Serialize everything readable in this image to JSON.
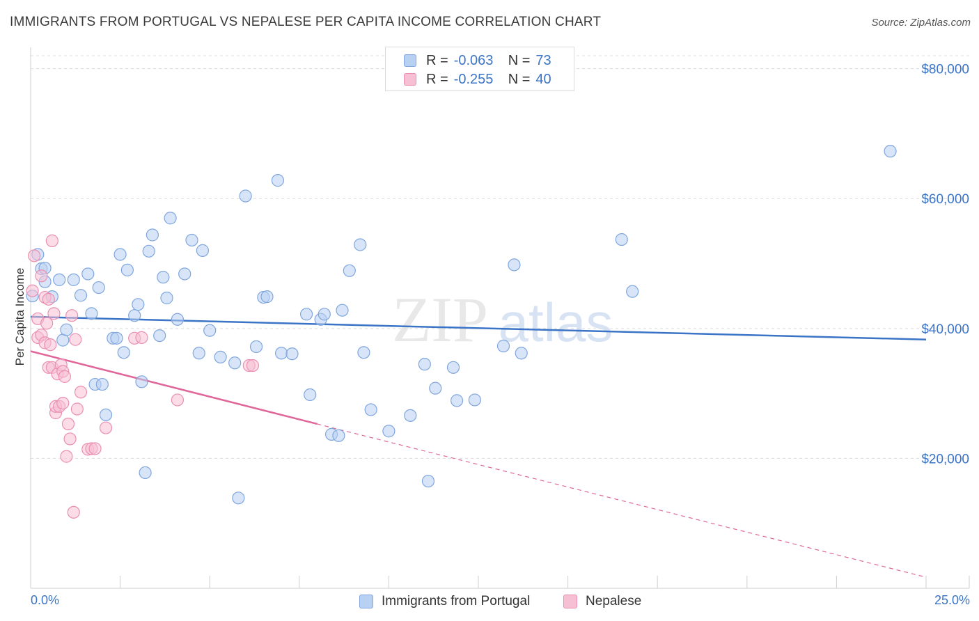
{
  "title": "IMMIGRANTS FROM PORTUGAL VS NEPALESE PER CAPITA INCOME CORRELATION CHART",
  "source": "Source: ZipAtlas.com",
  "watermark": {
    "zip": "ZIP",
    "atlas": "atlas"
  },
  "legend": {
    "r_label": "R =",
    "n_label": "N =",
    "rows": [
      {
        "r": "-0.063",
        "n": "73"
      },
      {
        "r": "-0.255",
        "n": "40"
      }
    ]
  },
  "colors": {
    "blue": "#3b74c6",
    "blue_fill": "#b8d0f2",
    "blue_stroke": "#7fa6de",
    "pink": "#e0669a",
    "pink_fill": "#f7bfd3",
    "pink_stroke": "#ea8fb2",
    "grid": "#dcdcdc"
  },
  "chart_data": {
    "type": "scatter",
    "xlabel": "",
    "ylabel": "Per Capita Income",
    "xlim": [
      0,
      25
    ],
    "ylim": [
      0,
      82000
    ],
    "x_tick_labels": [
      "0.0%",
      "25.0%"
    ],
    "y_ticks": [
      20000,
      40000,
      60000,
      80000
    ],
    "y_tick_labels": [
      "$20,000",
      "$40,000",
      "$60,000",
      "$80,000"
    ],
    "grid": true,
    "series": [
      {
        "name": "Immigrants from Portugal",
        "color": "#3b74c6",
        "trend": {
          "x": [
            0.0,
            25.0
          ],
          "y": [
            41800,
            38300
          ]
        },
        "points": [
          [
            0.2,
            51400
          ],
          [
            0.3,
            49200
          ],
          [
            0.4,
            49300
          ],
          [
            0.4,
            47200
          ],
          [
            0.6,
            44900
          ],
          [
            0.8,
            47500
          ],
          [
            0.9,
            38200
          ],
          [
            1.0,
            39800
          ],
          [
            1.2,
            47500
          ],
          [
            1.4,
            45100
          ],
          [
            1.6,
            48400
          ],
          [
            1.7,
            42300
          ],
          [
            1.8,
            31400
          ],
          [
            1.9,
            46300
          ],
          [
            2.0,
            31400
          ],
          [
            2.1,
            26700
          ],
          [
            2.3,
            38500
          ],
          [
            2.4,
            38500
          ],
          [
            2.5,
            51400
          ],
          [
            2.6,
            36300
          ],
          [
            2.7,
            49000
          ],
          [
            2.9,
            42000
          ],
          [
            3.0,
            43700
          ],
          [
            3.1,
            31800
          ],
          [
            3.2,
            17800
          ],
          [
            3.3,
            51900
          ],
          [
            3.4,
            54400
          ],
          [
            3.6,
            38900
          ],
          [
            3.7,
            47900
          ],
          [
            3.8,
            44700
          ],
          [
            3.9,
            57000
          ],
          [
            4.1,
            41400
          ],
          [
            4.3,
            48400
          ],
          [
            4.5,
            53600
          ],
          [
            4.7,
            36200
          ],
          [
            4.8,
            52000
          ],
          [
            5.0,
            39700
          ],
          [
            5.3,
            35600
          ],
          [
            5.7,
            34700
          ],
          [
            5.8,
            13900
          ],
          [
            6.0,
            60400
          ],
          [
            6.3,
            37200
          ],
          [
            6.5,
            44800
          ],
          [
            6.6,
            44900
          ],
          [
            6.9,
            62800
          ],
          [
            7.0,
            36200
          ],
          [
            7.3,
            36100
          ],
          [
            7.7,
            42200
          ],
          [
            7.8,
            29800
          ],
          [
            8.1,
            41400
          ],
          [
            8.2,
            42200
          ],
          [
            8.4,
            23700
          ],
          [
            8.6,
            23500
          ],
          [
            8.7,
            42800
          ],
          [
            8.9,
            48900
          ],
          [
            9.2,
            52900
          ],
          [
            9.3,
            36300
          ],
          [
            9.5,
            27500
          ],
          [
            10.0,
            24200
          ],
          [
            10.6,
            26600
          ],
          [
            11.0,
            34500
          ],
          [
            11.1,
            16500
          ],
          [
            11.3,
            30800
          ],
          [
            11.8,
            34000
          ],
          [
            11.9,
            28900
          ],
          [
            12.4,
            29000
          ],
          [
            13.2,
            37300
          ],
          [
            13.5,
            49800
          ],
          [
            13.7,
            36200
          ],
          [
            16.5,
            53700
          ],
          [
            16.8,
            45700
          ],
          [
            24.0,
            67300
          ],
          [
            0.05,
            45000
          ]
        ]
      },
      {
        "name": "Nepalese",
        "color": "#e0669a",
        "trend": {
          "x": [
            0.0,
            8.0
          ],
          "y": [
            36500,
            25300
          ]
        },
        "trend_dashed": {
          "x": [
            8.0,
            25.0
          ],
          "y": [
            25300,
            1700
          ]
        },
        "points": [
          [
            0.05,
            45800
          ],
          [
            0.1,
            51200
          ],
          [
            0.2,
            41500
          ],
          [
            0.2,
            38600
          ],
          [
            0.3,
            39000
          ],
          [
            0.3,
            48100
          ],
          [
            0.4,
            44800
          ],
          [
            0.4,
            37800
          ],
          [
            0.45,
            40800
          ],
          [
            0.5,
            44500
          ],
          [
            0.5,
            34000
          ],
          [
            0.55,
            37500
          ],
          [
            0.6,
            53500
          ],
          [
            0.6,
            34000
          ],
          [
            0.65,
            42300
          ],
          [
            0.7,
            27000
          ],
          [
            0.7,
            28000
          ],
          [
            0.75,
            33000
          ],
          [
            0.8,
            28000
          ],
          [
            0.85,
            34400
          ],
          [
            0.9,
            28500
          ],
          [
            0.9,
            33400
          ],
          [
            0.95,
            32600
          ],
          [
            1.0,
            20300
          ],
          [
            1.05,
            25300
          ],
          [
            1.1,
            23000
          ],
          [
            1.15,
            42000
          ],
          [
            1.2,
            11700
          ],
          [
            1.25,
            38300
          ],
          [
            1.3,
            27600
          ],
          [
            1.4,
            30200
          ],
          [
            1.6,
            21400
          ],
          [
            1.7,
            21500
          ],
          [
            1.8,
            21500
          ],
          [
            2.1,
            24700
          ],
          [
            2.9,
            38500
          ],
          [
            3.1,
            38600
          ],
          [
            4.1,
            29000
          ],
          [
            6.1,
            34300
          ],
          [
            6.2,
            34300
          ]
        ]
      }
    ]
  }
}
